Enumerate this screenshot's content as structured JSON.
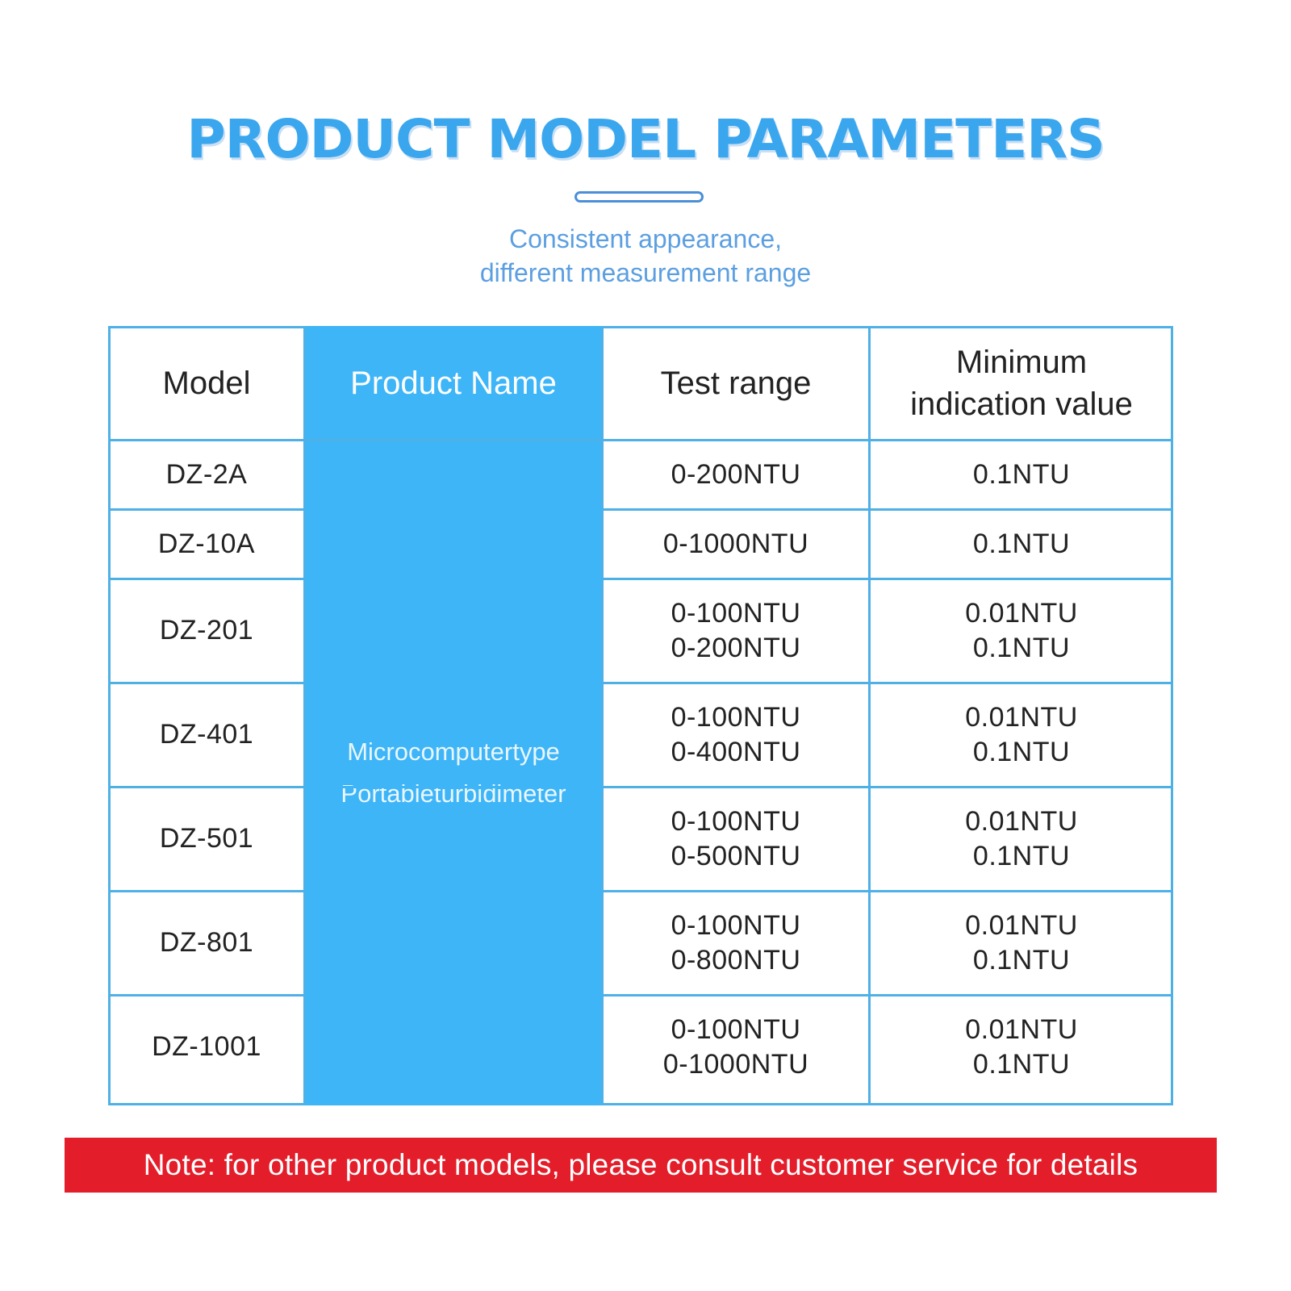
{
  "header": {
    "title": "PRODUCT MODEL PARAMETERS",
    "subtitle_line1": "Consistent appearance,",
    "subtitle_line2": "different measurement range"
  },
  "table": {
    "columns": [
      "Model",
      "Product Name",
      "Test range",
      "Minimum indication value"
    ],
    "column_header_lines": {
      "min_line1": "Minimum",
      "min_line2": "indication value"
    },
    "product_name_line1": "Microcomputertype",
    "product_name_line2": "Portableturbidimeter",
    "rows": [
      {
        "model": "DZ-2A",
        "range": [
          "0-200NTU"
        ],
        "min": [
          "0.1NTU"
        ]
      },
      {
        "model": "DZ-10A",
        "range": [
          "0-1000NTU"
        ],
        "min": [
          "0.1NTU"
        ]
      },
      {
        "model": "DZ-201",
        "range": [
          "0-100NTU",
          "0-200NTU"
        ],
        "min": [
          "0.01NTU",
          "0.1NTU"
        ]
      },
      {
        "model": "DZ-401",
        "range": [
          "0-100NTU",
          "0-400NTU"
        ],
        "min": [
          "0.01NTU",
          "0.1NTU"
        ]
      },
      {
        "model": "DZ-501",
        "range": [
          "0-100NTU",
          "0-500NTU"
        ],
        "min": [
          "0.01NTU",
          "0.1NTU"
        ]
      },
      {
        "model": "DZ-801",
        "range": [
          "0-100NTU",
          "0-800NTU"
        ],
        "min": [
          "0.01NTU",
          "0.1NTU"
        ]
      },
      {
        "model": "DZ-1001",
        "range": [
          "0-100NTU",
          "0-1000NTU"
        ],
        "min": [
          "0.01NTU",
          "0.1NTU"
        ]
      }
    ]
  },
  "note": "Note: for other product models, please consult customer service for details",
  "colors": {
    "title": "#3aa6ee",
    "table_border": "#4fb0e6",
    "product_column": "#3db5f7",
    "note_bar": "#e31e2a"
  }
}
